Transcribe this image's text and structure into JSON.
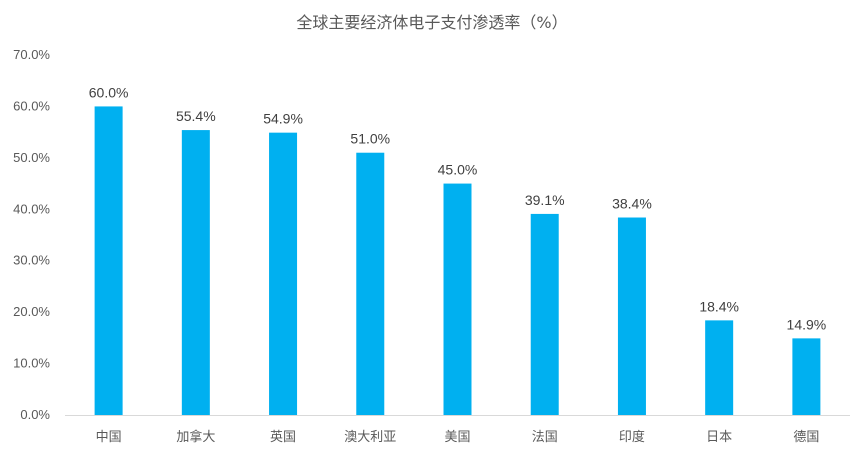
{
  "chart_data": {
    "type": "bar",
    "title": "全球主要经济体电子支付渗透率（%）",
    "xlabel": "",
    "ylabel": "",
    "categories": [
      "中国",
      "加拿大",
      "英国",
      "澳大利亚",
      "美国",
      "法国",
      "印度",
      "日本",
      "德国"
    ],
    "values": [
      60.0,
      55.4,
      54.9,
      51.0,
      45.0,
      39.1,
      38.4,
      18.4,
      14.9
    ],
    "data_labels": [
      "60.0%",
      "55.4%",
      "54.9%",
      "51.0%",
      "45.0%",
      "39.1%",
      "38.4%",
      "18.4%",
      "14.9%"
    ],
    "ylim": [
      0,
      70
    ],
    "yticks": [
      0,
      10,
      20,
      30,
      40,
      50,
      60,
      70
    ],
    "ytick_labels": [
      "0.0%",
      "10.0%",
      "20.0%",
      "30.0%",
      "40.0%",
      "50.0%",
      "60.0%",
      "70.0%"
    ],
    "grid": false,
    "legend": "none",
    "bar_color": "#00B0F0",
    "axis_color": "#D9D9D9"
  }
}
